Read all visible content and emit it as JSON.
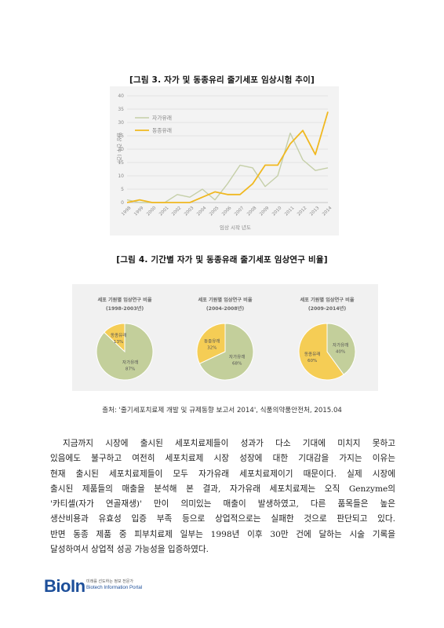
{
  "figure3": {
    "title": "[그림 3. 자가 및 동종유리 줄기세포 임상시험 추이]",
    "chart_data": {
      "type": "line",
      "xlabel": "임상 시작 년도",
      "ylabel": "임상 건수 (건)",
      "ylim": [
        0,
        40
      ],
      "yticks": [
        0,
        5,
        10,
        15,
        20,
        25,
        30,
        35,
        40
      ],
      "x": [
        "1998",
        "1999",
        "2000",
        "2001",
        "2002",
        "2003",
        "2004",
        "2005",
        "2006",
        "2007",
        "2008",
        "2009",
        "2010",
        "2011",
        "2012",
        "2013",
        "2014"
      ],
      "series": [
        {
          "name": "자가유래",
          "color": "#c5cfa8",
          "values": [
            1,
            0,
            0,
            0,
            3,
            2,
            5,
            1,
            7,
            14,
            13,
            6,
            10,
            26,
            16,
            12,
            13
          ]
        },
        {
          "name": "동종유래",
          "color": "#f0b820",
          "values": [
            0,
            1,
            0,
            0,
            0,
            0,
            2,
            4,
            3,
            3,
            7,
            14,
            14,
            22,
            27,
            18,
            34
          ]
        }
      ],
      "legend_position": "upper-left",
      "grid": true
    }
  },
  "figure4": {
    "title": "[그림 4. 기간별 자가 및 동종유래 줄기세포 임상연구 비율]",
    "chart_data": [
      {
        "type": "pie",
        "title": "세포 기원별 임상연구 비율",
        "period": "(1998-2003년)",
        "slices": [
          {
            "label": "자가유래",
            "value": 87,
            "pct": "87%",
            "color": "#c3cf9b"
          },
          {
            "label": "동종유래",
            "value": 13,
            "pct": "13%",
            "color": "#f5cd55"
          }
        ]
      },
      {
        "type": "pie",
        "title": "세포 기원별 임상연구 비율",
        "period": "(2004-2008년)",
        "slices": [
          {
            "label": "자가유래",
            "value": 68,
            "pct": "68%",
            "color": "#c3cf9b"
          },
          {
            "label": "동종유래",
            "value": 32,
            "pct": "32%",
            "color": "#f5cd55"
          }
        ]
      },
      {
        "type": "pie",
        "title": "세포 기원별 임상연구 비율",
        "period": "(2009-2014년)",
        "slices": [
          {
            "label": "자가유래",
            "value": 40,
            "pct": "40%",
            "color": "#c3cf9b"
          },
          {
            "label": "동종유래",
            "value": 60,
            "pct": "60%",
            "color": "#f5cd55"
          }
        ]
      }
    ]
  },
  "source": "출처: '줄기세포치료제 개발 및 규제동향 보고서 2014', 식품의약품안전처, 2015.04",
  "body_lines": [
    "지금까지 시장에 출시된 세포치료제들이 성과가 다소 기대에 미치지 못하고",
    "있음에도 불구하고 여전히 세포치료제 시장 성장에 대한 기대감을 가지는 이유는",
    "현재 출시된 세포치료제들이 모두 자가유래 세포치료제이기 때문이다. 실제 시장에",
    "출시된 제품들의 매출을 분석해 본 결과, 자가유래 세포치료제는 오직 Genzyme의",
    "'카티셀(자가 연골재생)' 만이 의미있는 매출이 발생하였고, 다른 품목들은 높은",
    "생산비용과 유효성 입증 부족 등으로 상업적으로는 실패한 것으로 판단되고 있다.",
    "반면 동종 제품 중 피부치료제 일부는 1998년 이후 30만 건에 달하는 시술 기록을",
    "달성하여서 상업적 성공 가능성을 입증하였다."
  ],
  "logo": {
    "mark_main": "Bio",
    "mark_in": "In",
    "tagline": "미래를 선도하는 정보 전문가",
    "subtitle": "Biotech Information Portal"
  }
}
